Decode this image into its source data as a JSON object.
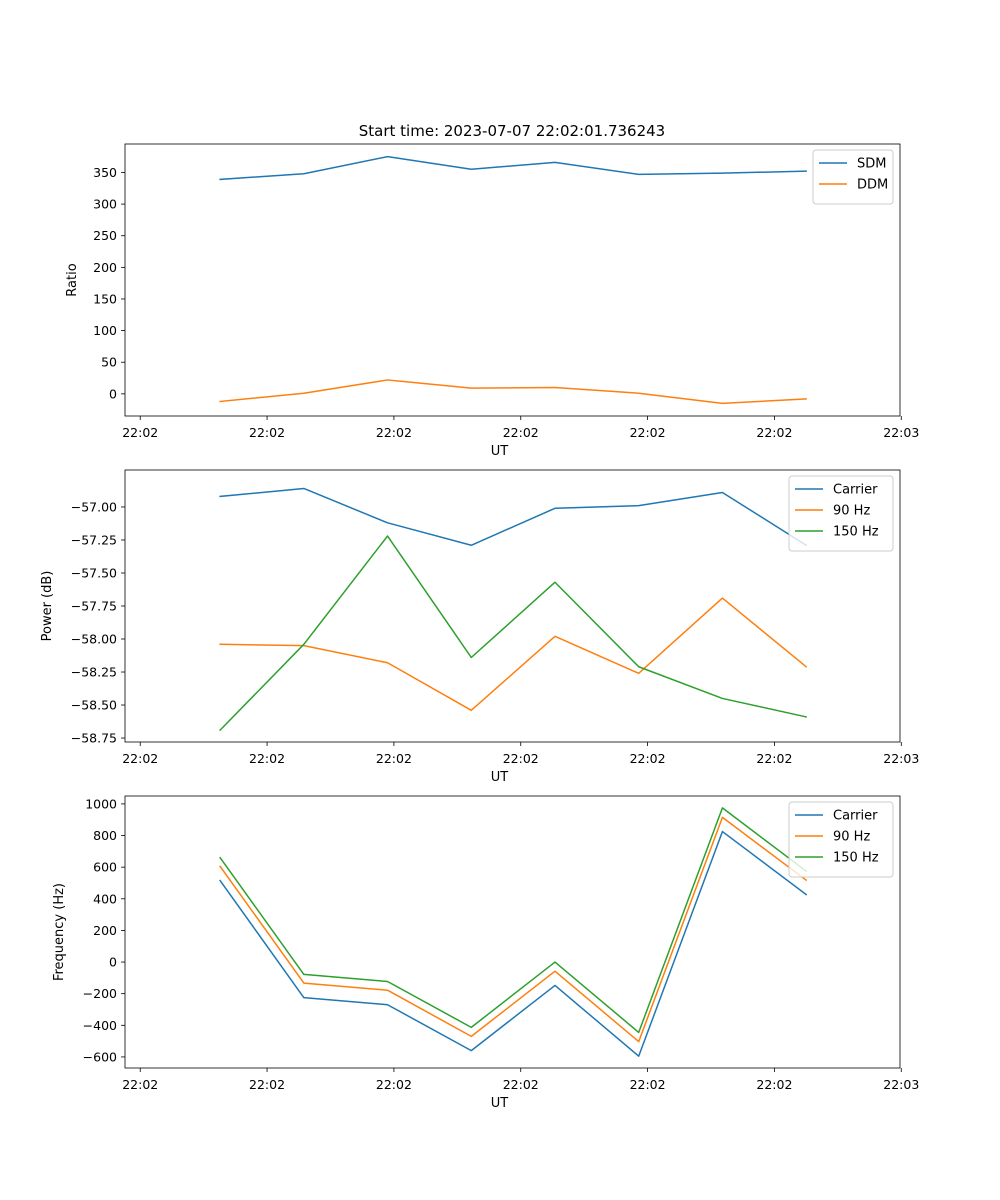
{
  "figure": {
    "title": "Start time: 2023-07-07 22:02:01.736243"
  },
  "chart_data": [
    {
      "type": "line",
      "title": "Start time: 2023-07-07 22:02:01.736243",
      "xlabel": "UT",
      "ylabel": "Ratio",
      "x": [
        0.75,
        1.41,
        2.07,
        2.73,
        3.39,
        4.05,
        4.71,
        5.37
      ],
      "x_range": [
        0,
        6.11
      ],
      "x_ticks": [
        0.12,
        1.12,
        2.12,
        3.12,
        4.12,
        5.12,
        6.12
      ],
      "x_tick_labels": [
        "22:02",
        "22:02",
        "22:02",
        "22:02",
        "22:02",
        "22:02",
        "22:03"
      ],
      "ylim": [
        -35,
        395
      ],
      "y_ticks": [
        0,
        50,
        100,
        150,
        200,
        250,
        300,
        350
      ],
      "y_tick_labels": [
        "0",
        "50",
        "100",
        "150",
        "200",
        "250",
        "300",
        "350"
      ],
      "legend_position": "upper-right",
      "series": [
        {
          "name": "SDM",
          "color": "#1f77b4",
          "values": [
            339,
            348,
            375,
            355,
            366,
            347,
            349,
            352
          ]
        },
        {
          "name": "DDM",
          "color": "#ff7f0e",
          "values": [
            -12,
            1,
            22,
            9,
            10,
            1,
            -15,
            -8
          ]
        }
      ]
    },
    {
      "type": "line",
      "title": "",
      "xlabel": "UT",
      "ylabel": "Power (dB)",
      "x": [
        0.75,
        1.41,
        2.07,
        2.73,
        3.39,
        4.05,
        4.71,
        5.37
      ],
      "x_range": [
        0,
        6.11
      ],
      "x_ticks": [
        0.12,
        1.12,
        2.12,
        3.12,
        4.12,
        5.12,
        6.12
      ],
      "x_tick_labels": [
        "22:02",
        "22:02",
        "22:02",
        "22:02",
        "22:02",
        "22:02",
        "22:03"
      ],
      "ylim": [
        -58.78,
        -56.72
      ],
      "y_ticks": [
        -57.0,
        -57.25,
        -57.5,
        -57.75,
        -58.0,
        -58.25,
        -58.5,
        -58.75
      ],
      "y_tick_labels": [
        "−57.00",
        "−57.25",
        "−57.50",
        "−57.75",
        "−58.00",
        "−58.25",
        "−58.50",
        "−58.75"
      ],
      "legend_position": "upper-right",
      "series": [
        {
          "name": "Carrier",
          "color": "#1f77b4",
          "values": [
            -56.92,
            -56.86,
            -57.12,
            -57.29,
            -57.01,
            -56.99,
            -56.89,
            -57.29
          ]
        },
        {
          "name": "90 Hz",
          "color": "#ff7f0e",
          "values": [
            -58.04,
            -58.05,
            -58.18,
            -58.54,
            -57.98,
            -58.26,
            -57.69,
            -58.21
          ]
        },
        {
          "name": "150 Hz",
          "color": "#2ca02c",
          "values": [
            -58.69,
            -58.04,
            -57.22,
            -58.14,
            -57.57,
            -58.21,
            -58.45,
            -58.59
          ]
        }
      ]
    },
    {
      "type": "line",
      "title": "",
      "xlabel": "UT",
      "ylabel": "Frequency (Hz)",
      "x": [
        0.75,
        1.41,
        2.07,
        2.73,
        3.39,
        4.05,
        4.71,
        5.37
      ],
      "x_range": [
        0,
        6.11
      ],
      "x_ticks": [
        0.12,
        1.12,
        2.12,
        3.12,
        4.12,
        5.12,
        6.12
      ],
      "x_tick_labels": [
        "22:02",
        "22:02",
        "22:02",
        "22:02",
        "22:02",
        "22:02",
        "22:03"
      ],
      "ylim": [
        -670,
        1050
      ],
      "y_ticks": [
        -600,
        -400,
        -200,
        0,
        200,
        400,
        600,
        800,
        1000
      ],
      "y_tick_labels": [
        "−600",
        "−400",
        "−200",
        "0",
        "200",
        "400",
        "600",
        "800",
        "1000"
      ],
      "legend_position": "upper-right",
      "series": [
        {
          "name": "Carrier",
          "color": "#1f77b4",
          "values": [
            515,
            -225,
            -270,
            -560,
            -148,
            -595,
            825,
            427
          ]
        },
        {
          "name": "90 Hz",
          "color": "#ff7f0e",
          "values": [
            605,
            -133,
            -178,
            -470,
            -58,
            -503,
            915,
            518
          ]
        },
        {
          "name": "150 Hz",
          "color": "#2ca02c",
          "values": [
            660,
            -78,
            -123,
            -413,
            0,
            -445,
            975,
            575
          ]
        }
      ]
    }
  ]
}
